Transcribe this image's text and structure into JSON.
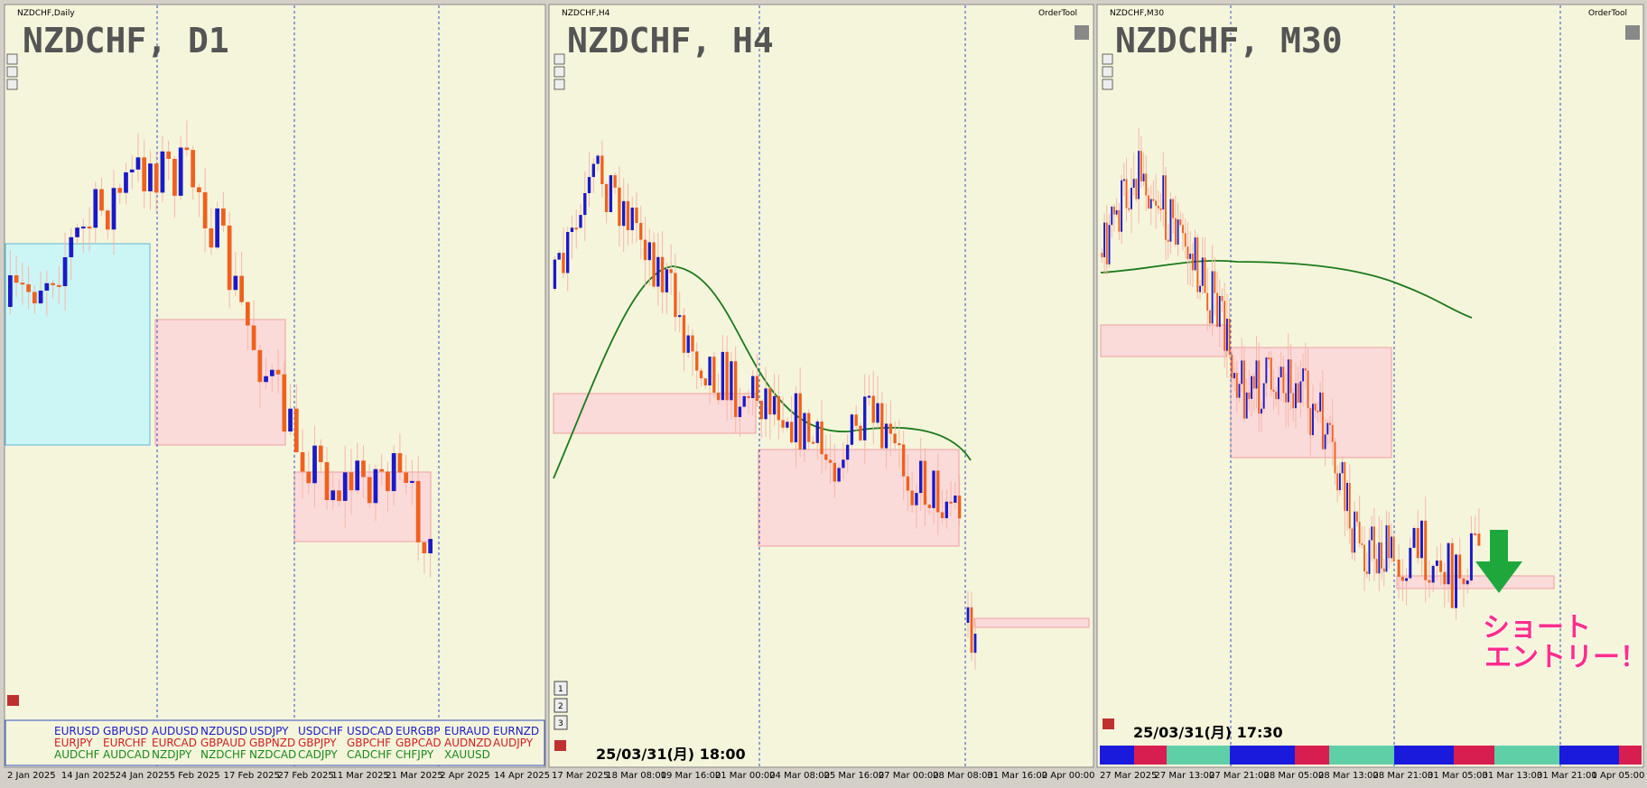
{
  "panels": [
    {
      "caption": "NZDCHF,Daily",
      "title": "NZDCHF, D1",
      "dates": [
        "2 Jan 2025",
        "14 Jan 2025",
        "24 Jan 2025",
        "5 Feb 2025",
        "17 Feb 2025",
        "27 Feb 2025",
        "11 Mar 2025",
        "21 Mar 2025",
        "2 Apr 2025",
        "14 Apr 2025"
      ]
    },
    {
      "caption": "NZDCHF,H4",
      "title": "NZDCHF, H4",
      "tool": "OrderTool",
      "timestamp": "25/03/31(月) 18:00",
      "buttons": [
        "1",
        "2",
        "3"
      ],
      "dates": [
        "17 Mar 2025",
        "18 Mar 08:00",
        "19 Mar 16:00",
        "21 Mar 00:00",
        "24 Mar 08:00",
        "25 Mar 16:00",
        "27 Mar 00:00",
        "28 Mar 08:00",
        "31 Mar 16:00",
        "2 Apr 00:00"
      ]
    },
    {
      "caption": "NZDCHF,M30",
      "title": "NZDCHF, M30",
      "tool": "OrderTool",
      "timestamp": "25/03/31(月) 17:30",
      "entry": [
        "ショート",
        "エントリー！"
      ],
      "dates": [
        "27 Mar 2025",
        "27 Mar 13:00",
        "27 Mar 21:00",
        "28 Mar 05:00",
        "28 Mar 13:00",
        "28 Mar 21:00",
        "31 Mar 05:00",
        "31 Mar 13:00",
        "31 Mar 21:00",
        "1 Apr 05:00"
      ]
    }
  ],
  "symbols": [
    [
      "EURUSD",
      "GBPUSD",
      "AUDUSD",
      "NZDUSD",
      "USDJPY",
      "USDCHF",
      "USDCAD",
      "EURGBP",
      "EURAUD",
      "EURNZD"
    ],
    [
      "EURJPY",
      "EURCHF",
      "EURCAD",
      "GBPAUD",
      "GBPNZD",
      "GBPJPY",
      "GBPCHF",
      "GBPCAD",
      "AUDNZD",
      "AUDJPY"
    ],
    [
      "AUDCHF",
      "AUDCAD",
      "NZDJPY",
      "NZDCHF",
      "NZDCAD",
      "CADJPY",
      "CADCHF",
      "CHFJPY",
      "XAUUSD"
    ]
  ]
}
